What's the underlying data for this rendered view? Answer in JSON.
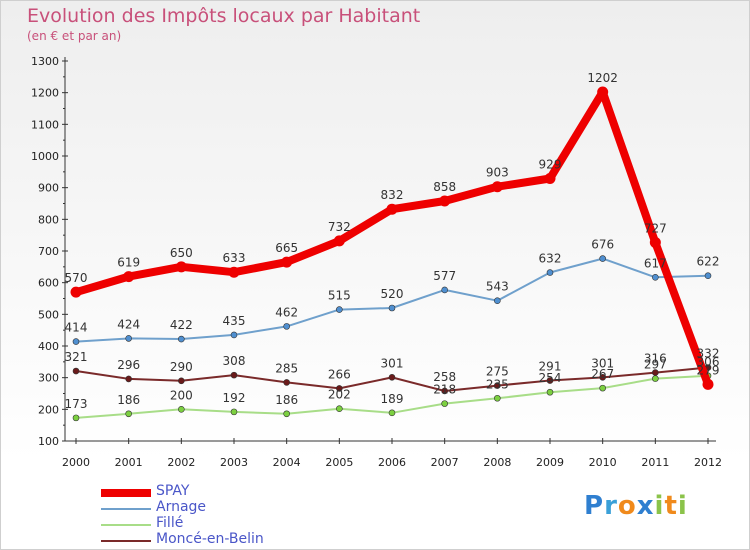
{
  "title": "Evolution des Impôts locaux par Habitant",
  "subtitle": "(en € et par an)",
  "logo": {
    "letters": [
      {
        "ch": "P",
        "color": "#2f7fd0"
      },
      {
        "ch": "r",
        "color": "#3aa0d8"
      },
      {
        "ch": "o",
        "color": "#f08a1c"
      },
      {
        "ch": "x",
        "color": "#2f7fd0"
      },
      {
        "ch": "i",
        "color": "#8bc34a"
      },
      {
        "ch": "t",
        "color": "#f08a1c"
      },
      {
        "ch": "i",
        "color": "#8bc34a"
      }
    ]
  },
  "chart_data": {
    "type": "line",
    "x": [
      "2000",
      "2001",
      "2002",
      "2003",
      "2004",
      "2005",
      "2006",
      "2007",
      "2008",
      "2009",
      "2010",
      "2011",
      "2012"
    ],
    "ylim": [
      100,
      1300
    ],
    "yticks": [
      100,
      200,
      300,
      400,
      500,
      600,
      700,
      800,
      900,
      1000,
      1100,
      1200,
      1300
    ],
    "grid": false,
    "legend_position": "bottom-left",
    "series": [
      {
        "name": "SPAY",
        "color": "#ee0000",
        "width": 8,
        "marker_fill": "#ee0000",
        "values": [
          570,
          619,
          650,
          633,
          665,
          732,
          832,
          858,
          903,
          929,
          1202,
          727,
          279
        ],
        "labels": [
          "570",
          "619",
          "650",
          "633",
          "665",
          "732",
          "832",
          "858",
          "903",
          "929",
          "1202",
          "727",
          "279"
        ]
      },
      {
        "name": "Arnage",
        "color": "#6fa0cc",
        "width": 2,
        "marker_fill": "#4f8fd0",
        "values": [
          414,
          424,
          422,
          435,
          462,
          515,
          520,
          577,
          543,
          632,
          676,
          617,
          622
        ],
        "labels": [
          "414",
          "424",
          "422",
          "435",
          "462",
          "515",
          "520",
          "577",
          "543",
          "632",
          "676",
          "617",
          "622"
        ]
      },
      {
        "name": "Fillé",
        "color": "#a8dd88",
        "width": 2,
        "marker_fill": "#7cd040",
        "values": [
          173,
          186,
          200,
          192,
          186,
          202,
          189,
          218,
          235,
          254,
          267,
          297,
          306
        ],
        "labels": [
          "173",
          "186",
          "200",
          "192",
          "186",
          "202",
          "189",
          "218",
          "235",
          "254",
          "267",
          "297",
          "306"
        ]
      },
      {
        "name": "Moncé-en-Belin",
        "color": "#7a2a2a",
        "width": 2,
        "marker_fill": "#6a1a1a",
        "values": [
          321,
          296,
          290,
          308,
          285,
          266,
          301,
          258,
          275,
          291,
          301,
          316,
          332
        ],
        "labels": [
          "321",
          "296",
          "290",
          "308",
          "285",
          "266",
          "301",
          "258",
          "275",
          "291",
          "301",
          "316",
          "332"
        ]
      }
    ]
  }
}
